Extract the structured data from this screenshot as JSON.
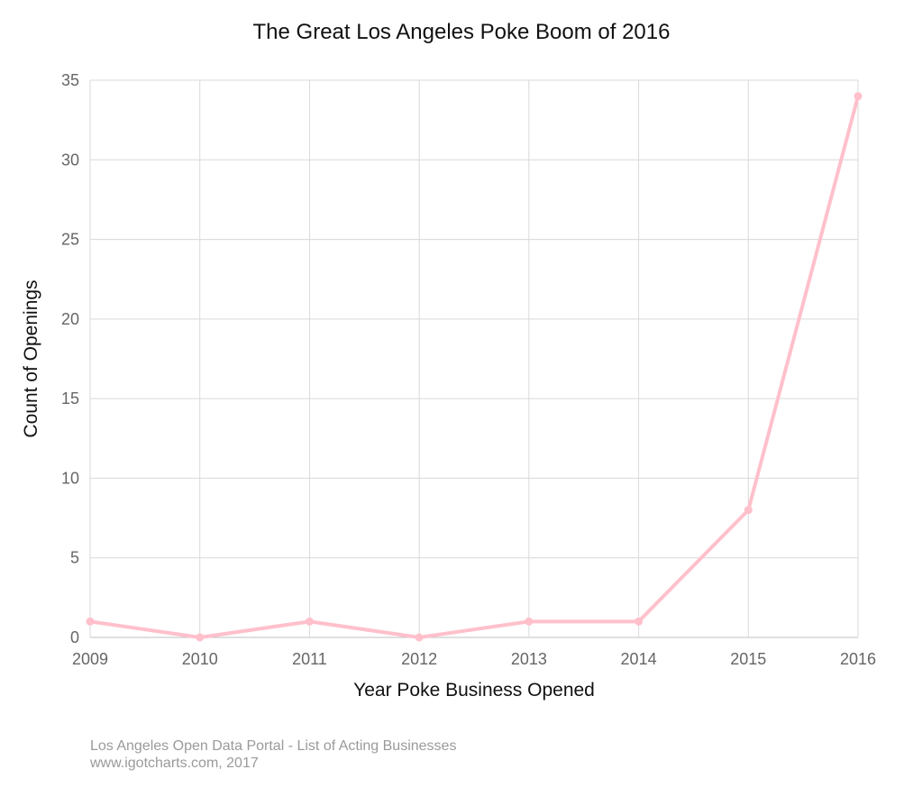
{
  "chart_data": {
    "type": "line",
    "title": "The Great Los Angeles Poke Boom of 2016",
    "xlabel": "Year Poke Business Opened",
    "ylabel": "Count of Openings",
    "x": [
      "2009",
      "2010",
      "2011",
      "2012",
      "2013",
      "2014",
      "2015",
      "2016"
    ],
    "series": [
      {
        "name": "Count of Openings",
        "values": [
          1,
          0,
          1,
          0,
          1,
          1,
          8,
          34
        ]
      }
    ],
    "ylim": [
      0,
      35
    ],
    "yticks": [
      0,
      5,
      10,
      15,
      20,
      25,
      30,
      35
    ],
    "grid": true,
    "legend": "none",
    "line_color": "#ffc0cb"
  },
  "footer": {
    "source": "Los Angeles Open Data Portal - List of Acting Businesses",
    "credit": "www.igotcharts.com, 2017"
  }
}
